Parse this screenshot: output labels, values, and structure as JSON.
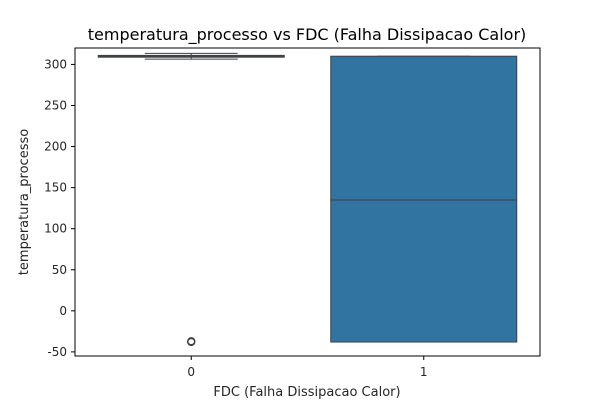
{
  "chart_data": {
    "type": "box",
    "title": "temperatura_processo vs FDC (Falha Dissipacao Calor)",
    "xlabel": "FDC (Falha Dissipacao Calor)",
    "ylabel": "temperatura_processo",
    "categories": [
      "0",
      "1"
    ],
    "ylim": [
      -55,
      320
    ],
    "yticks": [
      -50,
      0,
      50,
      100,
      150,
      200,
      250,
      300
    ],
    "grid": false,
    "box_color": "#3274a1",
    "edge_color": "#3f3f3f",
    "boxes": [
      {
        "category": "0",
        "whisker_low": 306.5,
        "q1": 308.8,
        "median": 310.0,
        "q3": 311.0,
        "whisker_high": 313.5,
        "outliers": [
          -38,
          -37,
          -37.5
        ]
      },
      {
        "category": "1",
        "whisker_low": -38,
        "q1": -38,
        "median": 135,
        "q3": 310,
        "whisker_high": 310,
        "outliers": []
      }
    ]
  }
}
